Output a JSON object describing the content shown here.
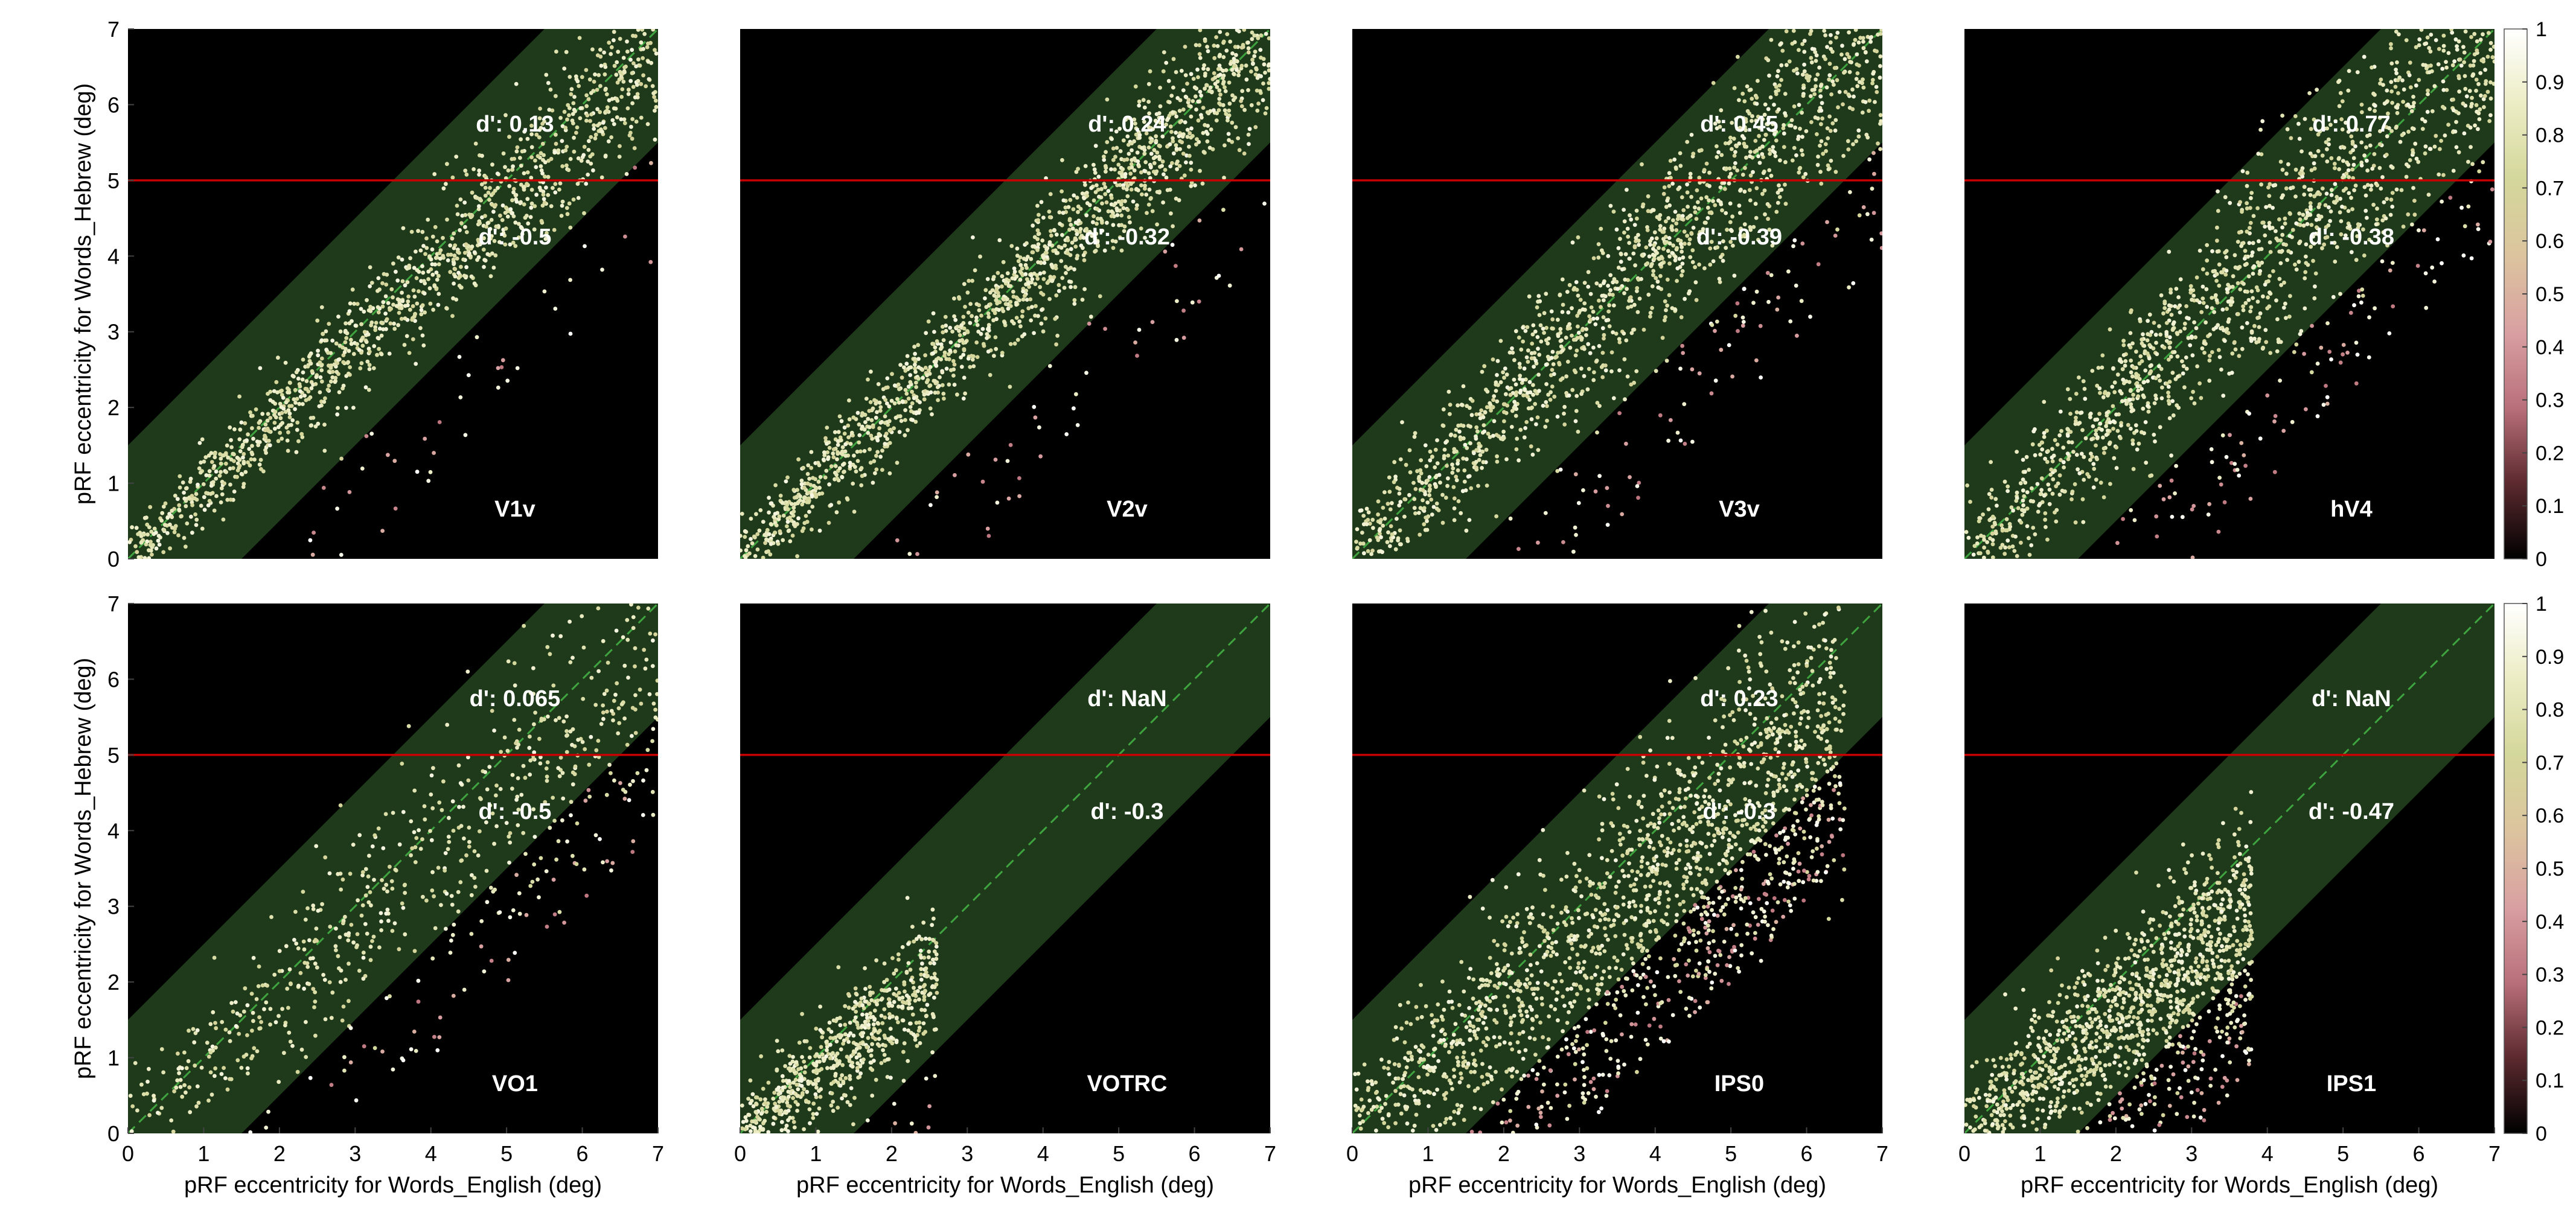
{
  "chart_data": [
    {
      "type": "scatter",
      "region_label": "V1v",
      "xlabel": "",
      "ylabel": "pRF eccentricity for Words_Hebrew (deg)",
      "xlim": [
        0,
        7
      ],
      "ylim": [
        0,
        7
      ],
      "xticks": [],
      "yticks": [
        "0",
        "1",
        "2",
        "3",
        "4",
        "5",
        "6",
        "7"
      ],
      "dprime_upper": "d': 0.13",
      "dprime_lower": "d': -0.5",
      "threshold_line": 5,
      "band_halfwidth": 1.5,
      "point_cloud": {
        "slope": 0.95,
        "spread": 0.35,
        "max": 7,
        "count": 1300,
        "outlier_ratio": 0.05
      }
    },
    {
      "type": "scatter",
      "region_label": "V2v",
      "xlabel": "",
      "ylabel": "",
      "xlim": [
        0,
        7
      ],
      "ylim": [
        0,
        7
      ],
      "xticks": [],
      "yticks": [],
      "dprime_upper": "d': 0.24",
      "dprime_lower": "d': -0.32",
      "threshold_line": 5,
      "band_halfwidth": 1.5,
      "point_cloud": {
        "slope": 0.98,
        "spread": 0.35,
        "max": 7,
        "count": 1600,
        "outlier_ratio": 0.04
      }
    },
    {
      "type": "scatter",
      "region_label": "V3v",
      "xlabel": "",
      "ylabel": "",
      "xlim": [
        0,
        7
      ],
      "ylim": [
        0,
        7
      ],
      "xticks": [],
      "yticks": [],
      "dprime_upper": "d': 0.45",
      "dprime_lower": "d': -0.39",
      "threshold_line": 5,
      "band_halfwidth": 1.5,
      "point_cloud": {
        "slope": 1.0,
        "spread": 0.5,
        "max": 7,
        "count": 1500,
        "outlier_ratio": 0.08
      }
    },
    {
      "type": "scatter",
      "region_label": "hV4",
      "xlabel": "",
      "ylabel": "",
      "xlim": [
        0,
        7
      ],
      "ylim": [
        0,
        7
      ],
      "xticks": [],
      "yticks": [],
      "dprime_upper": "d': 0.77",
      "dprime_lower": "d': -0.38",
      "threshold_line": 5,
      "band_halfwidth": 1.5,
      "point_cloud": {
        "slope": 1.0,
        "spread": 0.55,
        "max": 7,
        "count": 1500,
        "outlier_ratio": 0.08
      }
    },
    {
      "type": "scatter",
      "region_label": "VO1",
      "xlabel": "pRF eccentricity for Words_English (deg)",
      "ylabel": "pRF eccentricity for Words_Hebrew (deg)",
      "xlim": [
        0,
        7
      ],
      "ylim": [
        0,
        7
      ],
      "xticks": [
        "0",
        "1",
        "2",
        "3",
        "4",
        "5",
        "6",
        "7"
      ],
      "yticks": [
        "0",
        "1",
        "2",
        "3",
        "4",
        "5",
        "6",
        "7"
      ],
      "dprime_upper": "d': 0.065",
      "dprime_lower": "d': -0.5",
      "threshold_line": 5,
      "band_halfwidth": 1.5,
      "point_cloud": {
        "slope": 0.9,
        "spread": 0.6,
        "max": 7,
        "count": 700,
        "outlier_ratio": 0.12
      }
    },
    {
      "type": "scatter",
      "region_label": "VOTRC",
      "xlabel": "pRF eccentricity for Words_English (deg)",
      "ylabel": "",
      "xlim": [
        0,
        7
      ],
      "ylim": [
        0,
        7
      ],
      "xticks": [
        "0",
        "1",
        "2",
        "3",
        "4",
        "5",
        "6",
        "7"
      ],
      "yticks": [],
      "dprime_upper": "d': NaN",
      "dprime_lower": "d': -0.3",
      "threshold_line": 5,
      "band_halfwidth": 1.5,
      "point_cloud": {
        "slope": 0.8,
        "spread": 0.45,
        "max": 2.6,
        "count": 700,
        "outlier_ratio": 0.06
      }
    },
    {
      "type": "scatter",
      "region_label": "IPS0",
      "xlabel": "pRF eccentricity for Words_English (deg)",
      "ylabel": "",
      "xlim": [
        0,
        7
      ],
      "ylim": [
        0,
        7
      ],
      "xticks": [
        "0",
        "1",
        "2",
        "3",
        "4",
        "5",
        "6",
        "7"
      ],
      "yticks": [],
      "dprime_upper": "d': 0.23",
      "dprime_lower": "d': -0.3",
      "threshold_line": 5,
      "band_halfwidth": 1.5,
      "point_cloud": {
        "slope": 0.85,
        "spread": 0.7,
        "max": 6.5,
        "count": 1900,
        "outlier_ratio": 0.18
      }
    },
    {
      "type": "scatter",
      "region_label": "IPS1",
      "xlabel": "pRF eccentricity for Words_English (deg)",
      "ylabel": "",
      "xlim": [
        0,
        7
      ],
      "ylim": [
        0,
        7
      ],
      "xticks": [
        "0",
        "1",
        "2",
        "3",
        "4",
        "5",
        "6",
        "7"
      ],
      "yticks": [],
      "dprime_upper": "d': NaN",
      "dprime_lower": "d': -0.47",
      "threshold_line": 5,
      "band_halfwidth": 1.5,
      "point_cloud": {
        "slope": 0.75,
        "spread": 0.65,
        "max": 3.8,
        "count": 1400,
        "outlier_ratio": 0.15
      }
    }
  ],
  "colorbar": {
    "ticks": [
      "0",
      "0.1",
      "0.2",
      "0.3",
      "0.4",
      "0.5",
      "0.6",
      "0.7",
      "0.8",
      "0.9",
      "1"
    ],
    "range": [
      0,
      1
    ],
    "stops": [
      "#000000",
      "#5c2a2f",
      "#b9707a",
      "#d9a0a2",
      "#dcc49e",
      "#d4d79b",
      "#ececc4",
      "#ffffff"
    ]
  },
  "colors": {
    "plot_background": "#000000",
    "band": "#1e3a1a",
    "identity_line": "#3fa33f",
    "threshold_line": "#c80000",
    "label_text": "#ffffff",
    "axis_text": "#000000"
  }
}
